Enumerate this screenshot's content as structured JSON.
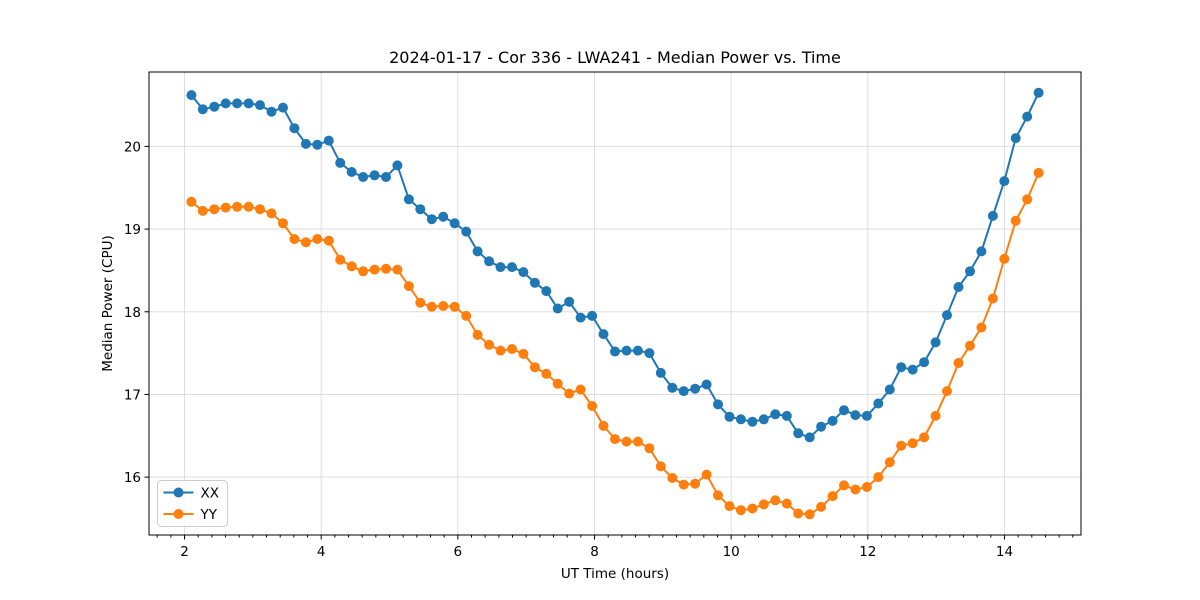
{
  "title": "2024-01-17 - Cor 336 - LWA241 - Median Power vs. Time",
  "chart_data": {
    "type": "line",
    "title": "2024-01-17 - Cor 336 - LWA241 - Median Power vs. Time",
    "xlabel": "UT Time (hours)",
    "ylabel": "Median Power (CPU)",
    "xlim": [
      1.48,
      15.12
    ],
    "ylim": [
      15.3,
      20.9
    ],
    "x_ticks": [
      2,
      4,
      6,
      8,
      10,
      12,
      14
    ],
    "x_minor_tick_step": 0.2,
    "y_ticks": [
      16,
      17,
      18,
      19,
      20
    ],
    "grid": true,
    "grid_color": "#dedede",
    "legend_position": "lower left",
    "marker": "circle",
    "x": [
      2.1,
      2.268,
      2.435,
      2.603,
      2.77,
      2.938,
      3.105,
      3.273,
      3.441,
      3.608,
      3.776,
      3.943,
      4.111,
      4.278,
      4.446,
      4.614,
      4.781,
      4.949,
      5.116,
      5.284,
      5.451,
      5.619,
      5.786,
      5.954,
      6.122,
      6.289,
      6.457,
      6.624,
      6.792,
      6.959,
      7.127,
      7.295,
      7.462,
      7.63,
      7.797,
      7.965,
      8.132,
      8.3,
      8.468,
      8.635,
      8.803,
      8.97,
      9.138,
      9.305,
      9.473,
      9.641,
      9.808,
      9.976,
      10.143,
      10.311,
      10.478,
      10.646,
      10.814,
      10.981,
      11.149,
      11.316,
      11.484,
      11.651,
      11.819,
      11.986,
      12.154,
      12.322,
      12.489,
      12.657,
      12.824,
      12.992,
      13.159,
      13.327,
      13.495,
      13.662,
      13.83,
      13.997,
      14.165,
      14.332,
      14.5
    ],
    "series": [
      {
        "name": "XX",
        "color": "#1f77b4",
        "values": [
          20.62,
          20.45,
          20.48,
          20.52,
          20.52,
          20.52,
          20.5,
          20.42,
          20.47,
          20.22,
          20.03,
          20.02,
          20.07,
          19.8,
          19.69,
          19.63,
          19.65,
          19.63,
          19.77,
          19.36,
          19.24,
          19.12,
          19.15,
          19.07,
          18.97,
          18.73,
          18.61,
          18.54,
          18.54,
          18.48,
          18.35,
          18.25,
          18.04,
          18.12,
          17.93,
          17.95,
          17.73,
          17.52,
          17.53,
          17.53,
          17.5,
          17.26,
          17.08,
          17.04,
          17.07,
          17.12,
          16.88,
          16.73,
          16.7,
          16.67,
          16.7,
          16.76,
          16.74,
          16.53,
          16.48,
          16.61,
          16.68,
          16.81,
          16.75,
          16.74,
          16.89,
          17.06,
          17.33,
          17.3,
          17.39,
          17.63,
          17.96,
          18.3,
          18.49,
          18.73,
          19.16,
          19.58,
          20.1,
          20.36,
          20.65
        ]
      },
      {
        "name": "YY",
        "color": "#ff7f0e",
        "values": [
          19.33,
          19.22,
          19.24,
          19.26,
          19.27,
          19.27,
          19.24,
          19.19,
          19.07,
          18.88,
          18.84,
          18.88,
          18.86,
          18.63,
          18.55,
          18.49,
          18.51,
          18.52,
          18.51,
          18.31,
          18.11,
          18.06,
          18.07,
          18.06,
          17.95,
          17.72,
          17.6,
          17.53,
          17.55,
          17.49,
          17.33,
          17.25,
          17.13,
          17.01,
          17.06,
          16.86,
          16.62,
          16.46,
          16.43,
          16.43,
          16.35,
          16.13,
          15.99,
          15.91,
          15.92,
          16.03,
          15.78,
          15.65,
          15.6,
          15.62,
          15.67,
          15.72,
          15.68,
          15.56,
          15.55,
          15.64,
          15.77,
          15.9,
          15.85,
          15.88,
          16.0,
          16.18,
          16.38,
          16.41,
          16.48,
          16.74,
          17.04,
          17.38,
          17.59,
          17.81,
          18.16,
          18.64,
          19.1,
          19.36,
          19.68
        ]
      }
    ]
  }
}
